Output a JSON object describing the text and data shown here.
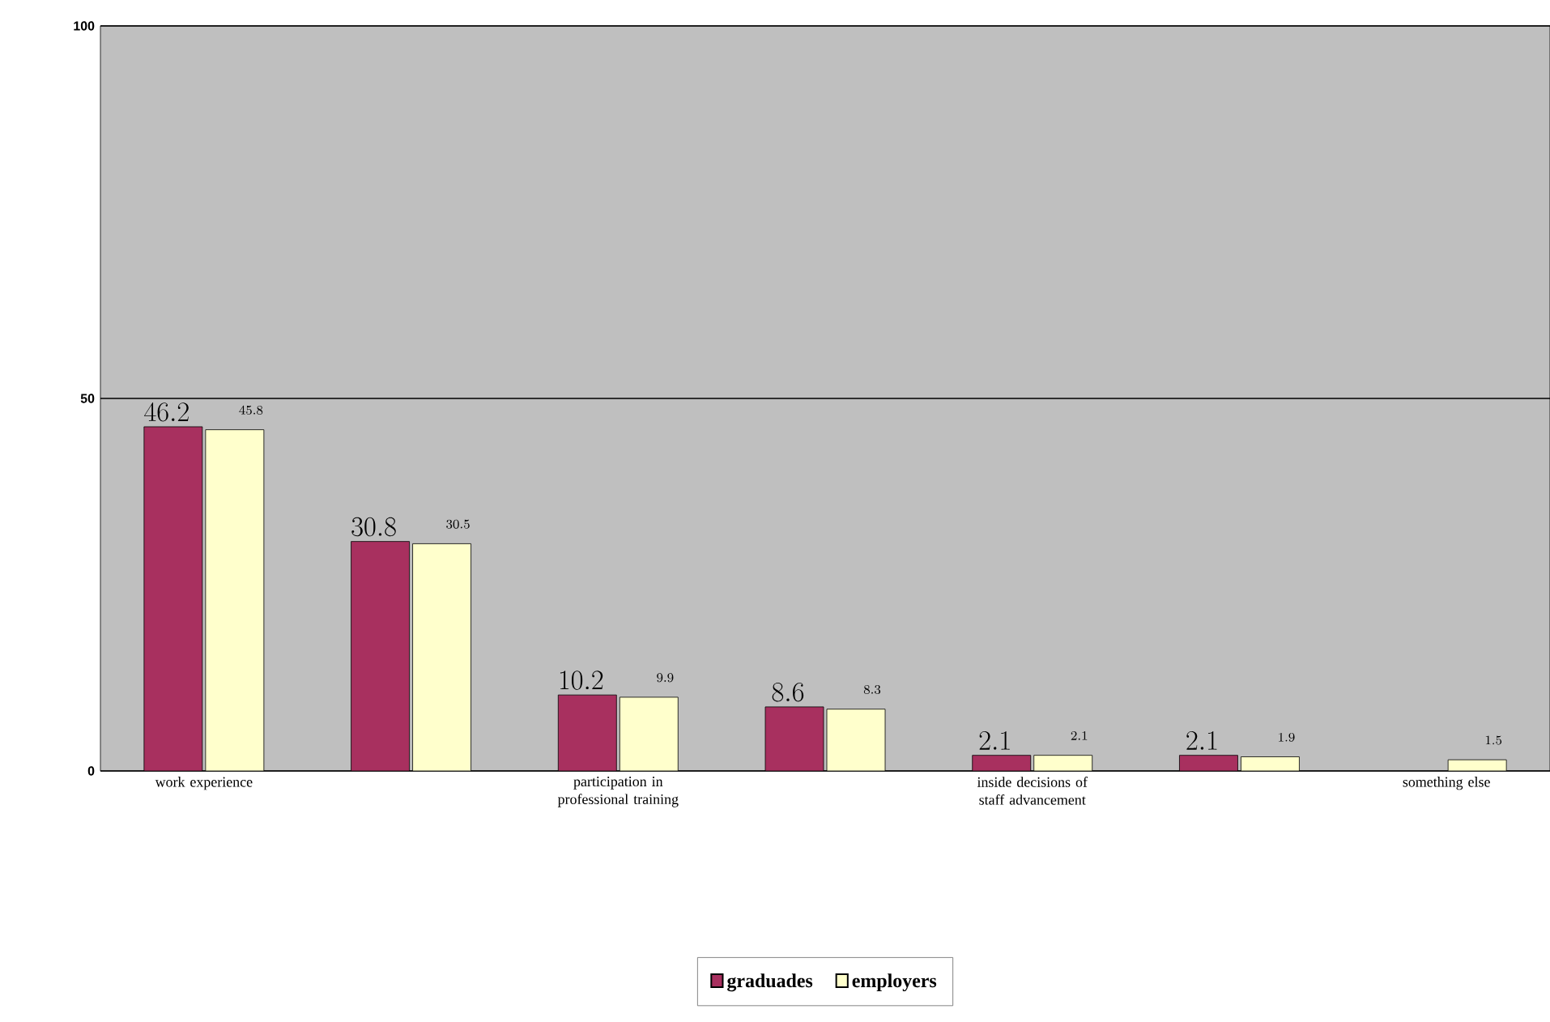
{
  "chart_data": {
    "type": "bar",
    "categories": [
      "work experience",
      null,
      "participation in professional training",
      null,
      "inside decisions of staff advancement",
      null,
      "something else"
    ],
    "series": [
      {
        "name": "graduades",
        "color": "#a8305f",
        "values": [
          46.2,
          30.8,
          10.2,
          8.6,
          2.1,
          2.1,
          null
        ]
      },
      {
        "name": "employers",
        "color": "#ffffcc",
        "values": [
          45.8,
          30.5,
          9.9,
          8.3,
          2.1,
          1.9,
          1.5
        ]
      }
    ],
    "ylim": [
      0,
      100
    ],
    "yticks": [
      0,
      50,
      100
    ],
    "grid": "y",
    "legend": "bottom",
    "data_labels": true
  }
}
